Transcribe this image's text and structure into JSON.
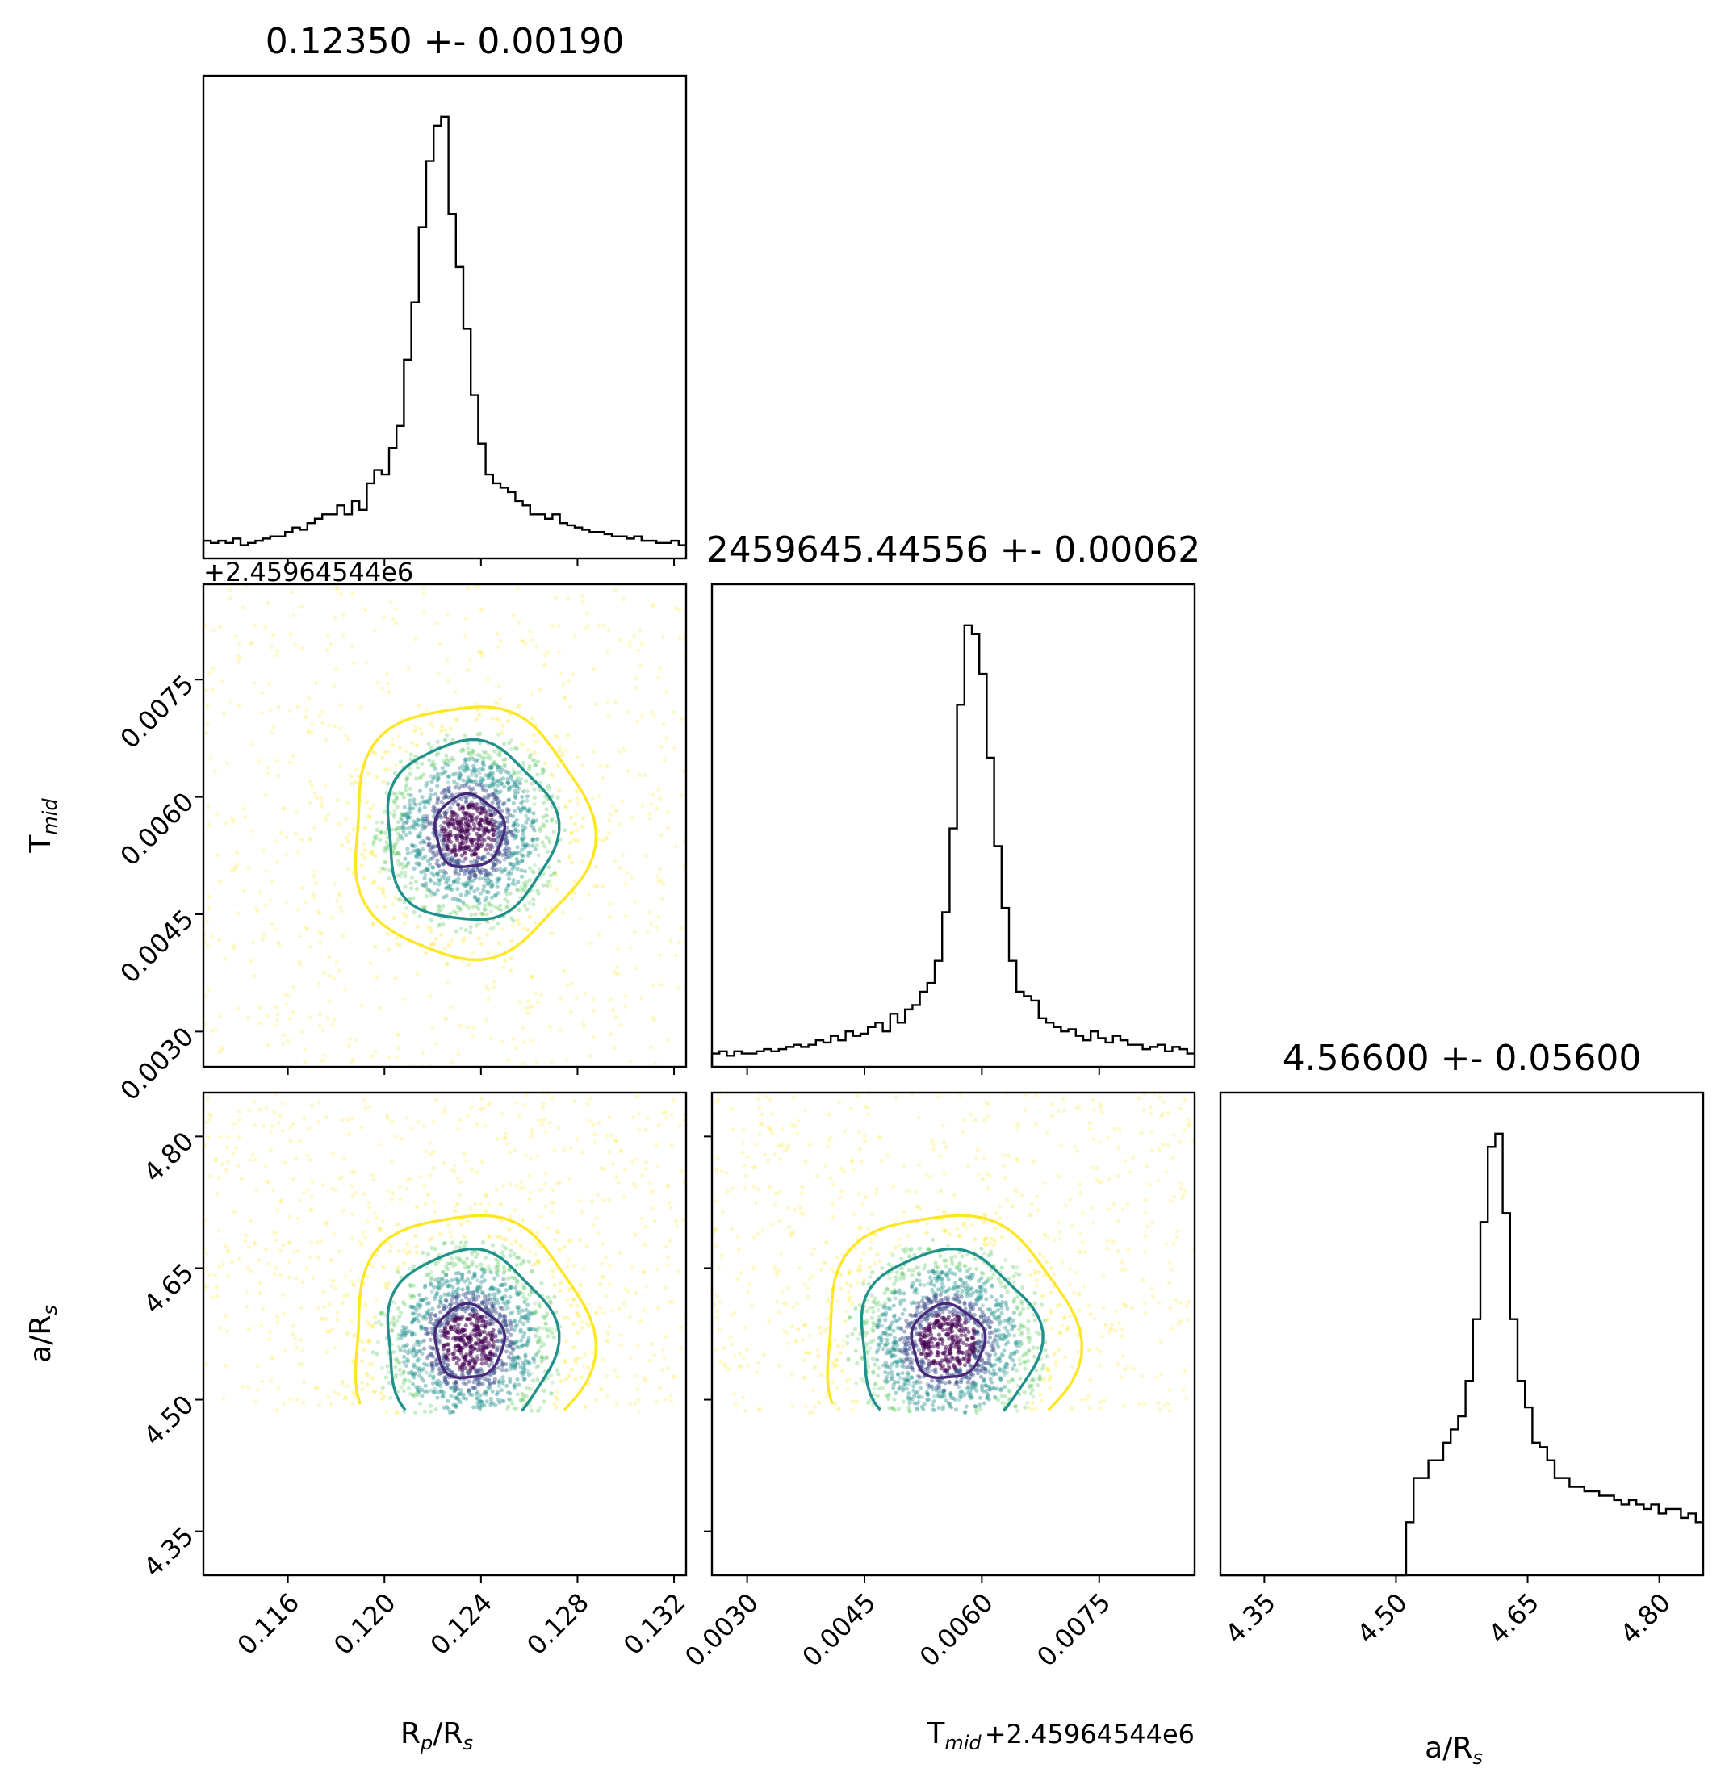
{
  "chart_data": {
    "type": "corner",
    "parameters": [
      {
        "key": "rp",
        "label_main": "R",
        "label_sub": "p",
        "label_mid": "/R",
        "label_sub2": "s",
        "median": 0.1235,
        "sigma": 0.0019,
        "range": [
          0.1125,
          0.1325
        ],
        "ticks": [
          "0.116",
          "0.120",
          "0.124",
          "0.128",
          "0.132"
        ],
        "title": "0.12350 +- 0.00190"
      },
      {
        "key": "tmid",
        "label_main": "T",
        "label_sub": "mid",
        "label_mid": "",
        "label_sub2": "",
        "median": 0.00556,
        "sigma": 0.00062,
        "range": [
          0.00255,
          0.00872
        ],
        "ticks": [
          "0.0030",
          "0.0045",
          "0.0060",
          "0.0075"
        ],
        "offset": "+2.45964544e6",
        "title": "2459645.44556 +- 0.00062"
      },
      {
        "key": "a",
        "label_main": "a/R",
        "label_sub": "s",
        "label_mid": "",
        "label_sub2": "",
        "median": 4.566,
        "sigma": 0.056,
        "range": [
          4.3,
          4.85
        ],
        "ticks": [
          "4.35",
          "4.50",
          "4.65",
          "4.80"
        ],
        "title": "4.56600 +- 0.05600"
      }
    ],
    "histograms": {
      "rp": [
        0.04,
        0.035,
        0.04,
        0.035,
        0.045,
        0.03,
        0.035,
        0.04,
        0.045,
        0.05,
        0.05,
        0.06,
        0.07,
        0.065,
        0.08,
        0.09,
        0.1,
        0.1,
        0.12,
        0.1,
        0.13,
        0.11,
        0.17,
        0.2,
        0.19,
        0.25,
        0.3,
        0.45,
        0.58,
        0.75,
        0.9,
        0.98,
        1.0,
        0.78,
        0.66,
        0.52,
        0.37,
        0.26,
        0.19,
        0.17,
        0.16,
        0.15,
        0.13,
        0.12,
        0.1,
        0.1,
        0.09,
        0.1,
        0.08,
        0.075,
        0.07,
        0.065,
        0.06,
        0.06,
        0.055,
        0.05,
        0.05,
        0.045,
        0.05,
        0.04,
        0.04,
        0.035,
        0.035,
        0.04,
        0.03
      ],
      "tmid": [
        0.03,
        0.035,
        0.025,
        0.035,
        0.03,
        0.03,
        0.035,
        0.04,
        0.035,
        0.04,
        0.045,
        0.05,
        0.045,
        0.05,
        0.06,
        0.055,
        0.07,
        0.06,
        0.08,
        0.07,
        0.075,
        0.09,
        0.1,
        0.08,
        0.12,
        0.1,
        0.13,
        0.14,
        0.17,
        0.19,
        0.24,
        0.35,
        0.54,
        0.82,
        1.0,
        0.98,
        0.89,
        0.7,
        0.5,
        0.36,
        0.24,
        0.17,
        0.16,
        0.15,
        0.11,
        0.1,
        0.09,
        0.08,
        0.085,
        0.07,
        0.06,
        0.08,
        0.065,
        0.055,
        0.07,
        0.06,
        0.05,
        0.05,
        0.04,
        0.045,
        0.05,
        0.035,
        0.045,
        0.04,
        0.03
      ],
      "a": [
        0.0,
        0.0,
        0.0,
        0.0,
        0.0,
        0.0,
        0.0,
        0.0,
        0.0,
        0.0,
        0.0,
        0.0,
        0.0,
        0.0,
        0.0,
        0.0,
        0.0,
        0.0,
        0.0,
        0.0,
        0.0,
        0.0,
        0.0,
        0.0,
        0.0,
        0.12,
        0.22,
        0.22,
        0.26,
        0.26,
        0.3,
        0.33,
        0.36,
        0.44,
        0.58,
        0.8,
        0.97,
        1.0,
        0.82,
        0.58,
        0.44,
        0.38,
        0.3,
        0.29,
        0.26,
        0.22,
        0.22,
        0.2,
        0.2,
        0.19,
        0.19,
        0.18,
        0.18,
        0.17,
        0.16,
        0.17,
        0.16,
        0.15,
        0.16,
        0.14,
        0.15,
        0.15,
        0.13,
        0.14,
        0.12
      ]
    },
    "contour_colors": [
      "#482878",
      "#21918c",
      "#fde725"
    ],
    "scatter_colors": [
      "#440154",
      "#3b528b",
      "#21918c",
      "#5ec962",
      "#fde725"
    ],
    "grid": false,
    "legend": "none"
  }
}
